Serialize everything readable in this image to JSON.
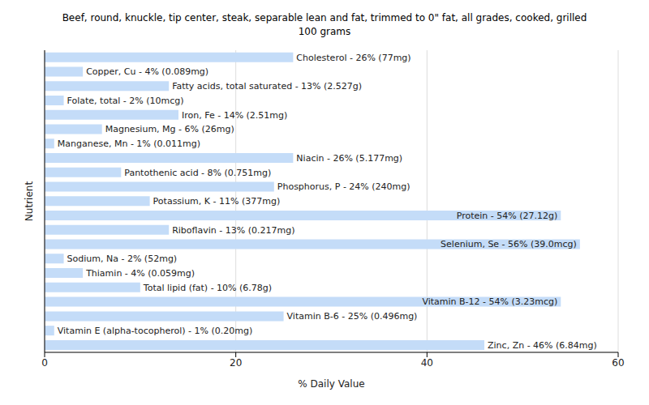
{
  "chart_data": {
    "type": "bar",
    "orientation": "horizontal",
    "title": "Beef, round, knuckle, tip center, steak, separable lean and fat, trimmed to 0\" fat, all grades, cooked, grilled",
    "subtitle": "100 grams",
    "x_label": "% Daily Value",
    "y_label": "Nutrient",
    "categories": [
      null,
      null,
      null,
      null,
      null,
      null,
      null,
      null,
      null,
      null,
      null,
      null,
      null,
      null,
      null,
      null,
      null,
      null,
      null,
      null,
      null
    ],
    "values": [
      26,
      4,
      13,
      2,
      14,
      6,
      1,
      26,
      8,
      24,
      11,
      54,
      13,
      56,
      2,
      4,
      10,
      54,
      25,
      1,
      46
    ],
    "value_labels": [
      "Cholesterol - 26% (77mg)",
      "Copper, Cu - 4% (0.089mg)",
      "Fatty acids, total saturated - 13% (2.527g)",
      "Folate, total - 2% (10mcg)",
      "Iron, Fe - 14% (2.51mg)",
      "Magnesium, Mg - 6% (26mg)",
      "Manganese, Mn - 1% (0.011mg)",
      "Niacin - 26% (5.177mg)",
      "Pantothenic acid - 8% (0.751mg)",
      "Phosphorus, P - 24% (240mg)",
      "Potassium, K - 11% (377mg)",
      "Protein - 54% (27.12g)",
      "Riboflavin - 13% (0.217mg)",
      "Selenium, Se - 56% (39.0mcg)",
      "Sodium, Na - 2% (52mg)",
      "Thiamin - 4% (0.059mg)",
      "Total lipid (fat) - 10% (6.78g)",
      "Vitamin B-12 - 54% (3.23mcg)",
      "Vitamin B-6 - 25% (0.496mg)",
      "Vitamin E (alpha-tocopherol) - 1% (0.20mg)",
      "Zinc, Zn - 46% (6.84mg)"
    ],
    "color": "#c4dcf8",
    "xlim": [
      0,
      60
    ],
    "xticks": [
      0,
      20,
      40,
      60
    ],
    "grid": true,
    "data_labels": true,
    "tick_labels": "x"
  }
}
